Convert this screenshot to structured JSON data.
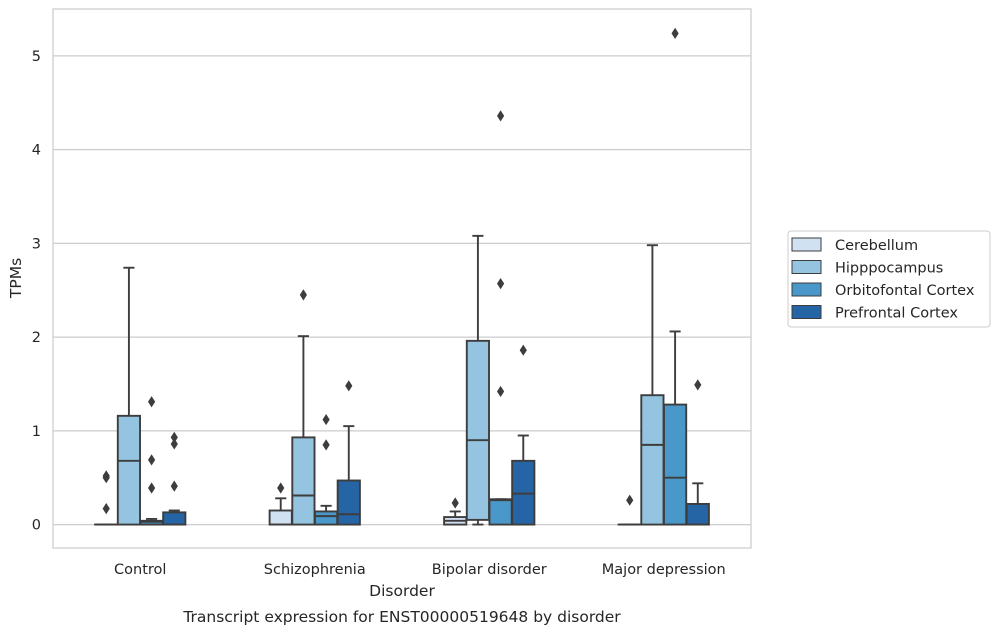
{
  "chart_data": {
    "type": "box",
    "title": "",
    "caption": "Transcript expression for ENST00000519648 by disorder",
    "xlabel": "Disorder",
    "ylabel": "TPMs",
    "ylim": [
      -0.25,
      5.5
    ],
    "yticks": [
      0,
      1,
      2,
      3,
      4,
      5
    ],
    "grid": "horizontal",
    "legend_position": "right",
    "categories": [
      "Control",
      "Schizophrenia",
      "Bipolar disorder",
      "Major depression"
    ],
    "series": [
      {
        "name": "Cerebellum",
        "color": "#d0e1f2",
        "boxes": [
          {
            "whislo": 0,
            "q1": 0,
            "med": 0,
            "q3": 0,
            "whishi": 0,
            "fliers": [
              0.17,
              0.5,
              0.52
            ]
          },
          {
            "whislo": 0,
            "q1": 0,
            "med": 0,
            "q3": 0.15,
            "whishi": 0.28,
            "fliers": [
              0.39
            ]
          },
          {
            "whislo": 0,
            "q1": 0,
            "med": 0.04,
            "q3": 0.08,
            "whishi": 0.14,
            "fliers": [
              0.23
            ]
          },
          {
            "whislo": 0,
            "q1": 0,
            "med": 0,
            "q3": 0,
            "whishi": 0,
            "fliers": [
              0.26
            ]
          }
        ]
      },
      {
        "name": "Hipppocampus",
        "color": "#94c4df",
        "boxes": [
          {
            "whislo": 0,
            "q1": 0,
            "med": 0.68,
            "q3": 1.16,
            "whishi": 2.74,
            "fliers": []
          },
          {
            "whislo": 0,
            "q1": 0,
            "med": 0.31,
            "q3": 0.93,
            "whishi": 2.01,
            "fliers": [
              2.45
            ]
          },
          {
            "whislo": 0,
            "q1": 0.05,
            "med": 0.9,
            "q3": 1.96,
            "whishi": 3.08,
            "fliers": []
          },
          {
            "whislo": 0,
            "q1": 0,
            "med": 0.85,
            "q3": 1.38,
            "whishi": 2.98,
            "fliers": []
          }
        ]
      },
      {
        "name": "Orbitofontal Cortex",
        "color": "#4a98c9",
        "boxes": [
          {
            "whislo": 0,
            "q1": 0,
            "med": 0.03,
            "q3": 0.04,
            "whishi": 0.06,
            "fliers": [
              0.39,
              0.69,
              1.31
            ]
          },
          {
            "whislo": 0,
            "q1": 0,
            "med": 0.09,
            "q3": 0.14,
            "whishi": 0.2,
            "fliers": [
              0.85,
              1.12
            ]
          },
          {
            "whislo": 0,
            "q1": 0,
            "med": 0.26,
            "q3": 0.27,
            "whishi": 0.27,
            "fliers": [
              1.42,
              2.57,
              4.36
            ]
          },
          {
            "whislo": 0,
            "q1": 0,
            "med": 0.5,
            "q3": 1.28,
            "whishi": 2.06,
            "fliers": [
              5.24
            ]
          }
        ]
      },
      {
        "name": "Prefrontal Cortex",
        "color": "#2565a6",
        "boxes": [
          {
            "whislo": 0,
            "q1": 0,
            "med": 0,
            "q3": 0.13,
            "whishi": 0.15,
            "fliers": [
              0.41,
              0.86,
              0.93
            ]
          },
          {
            "whislo": 0,
            "q1": 0,
            "med": 0.11,
            "q3": 0.47,
            "whishi": 1.05,
            "fliers": [
              1.48
            ]
          },
          {
            "whislo": 0,
            "q1": 0,
            "med": 0.33,
            "q3": 0.68,
            "whishi": 0.95,
            "fliers": [
              1.86
            ]
          },
          {
            "whislo": 0,
            "q1": 0,
            "med": 0,
            "q3": 0.22,
            "whishi": 0.44,
            "fliers": [
              1.49
            ]
          }
        ]
      }
    ]
  }
}
